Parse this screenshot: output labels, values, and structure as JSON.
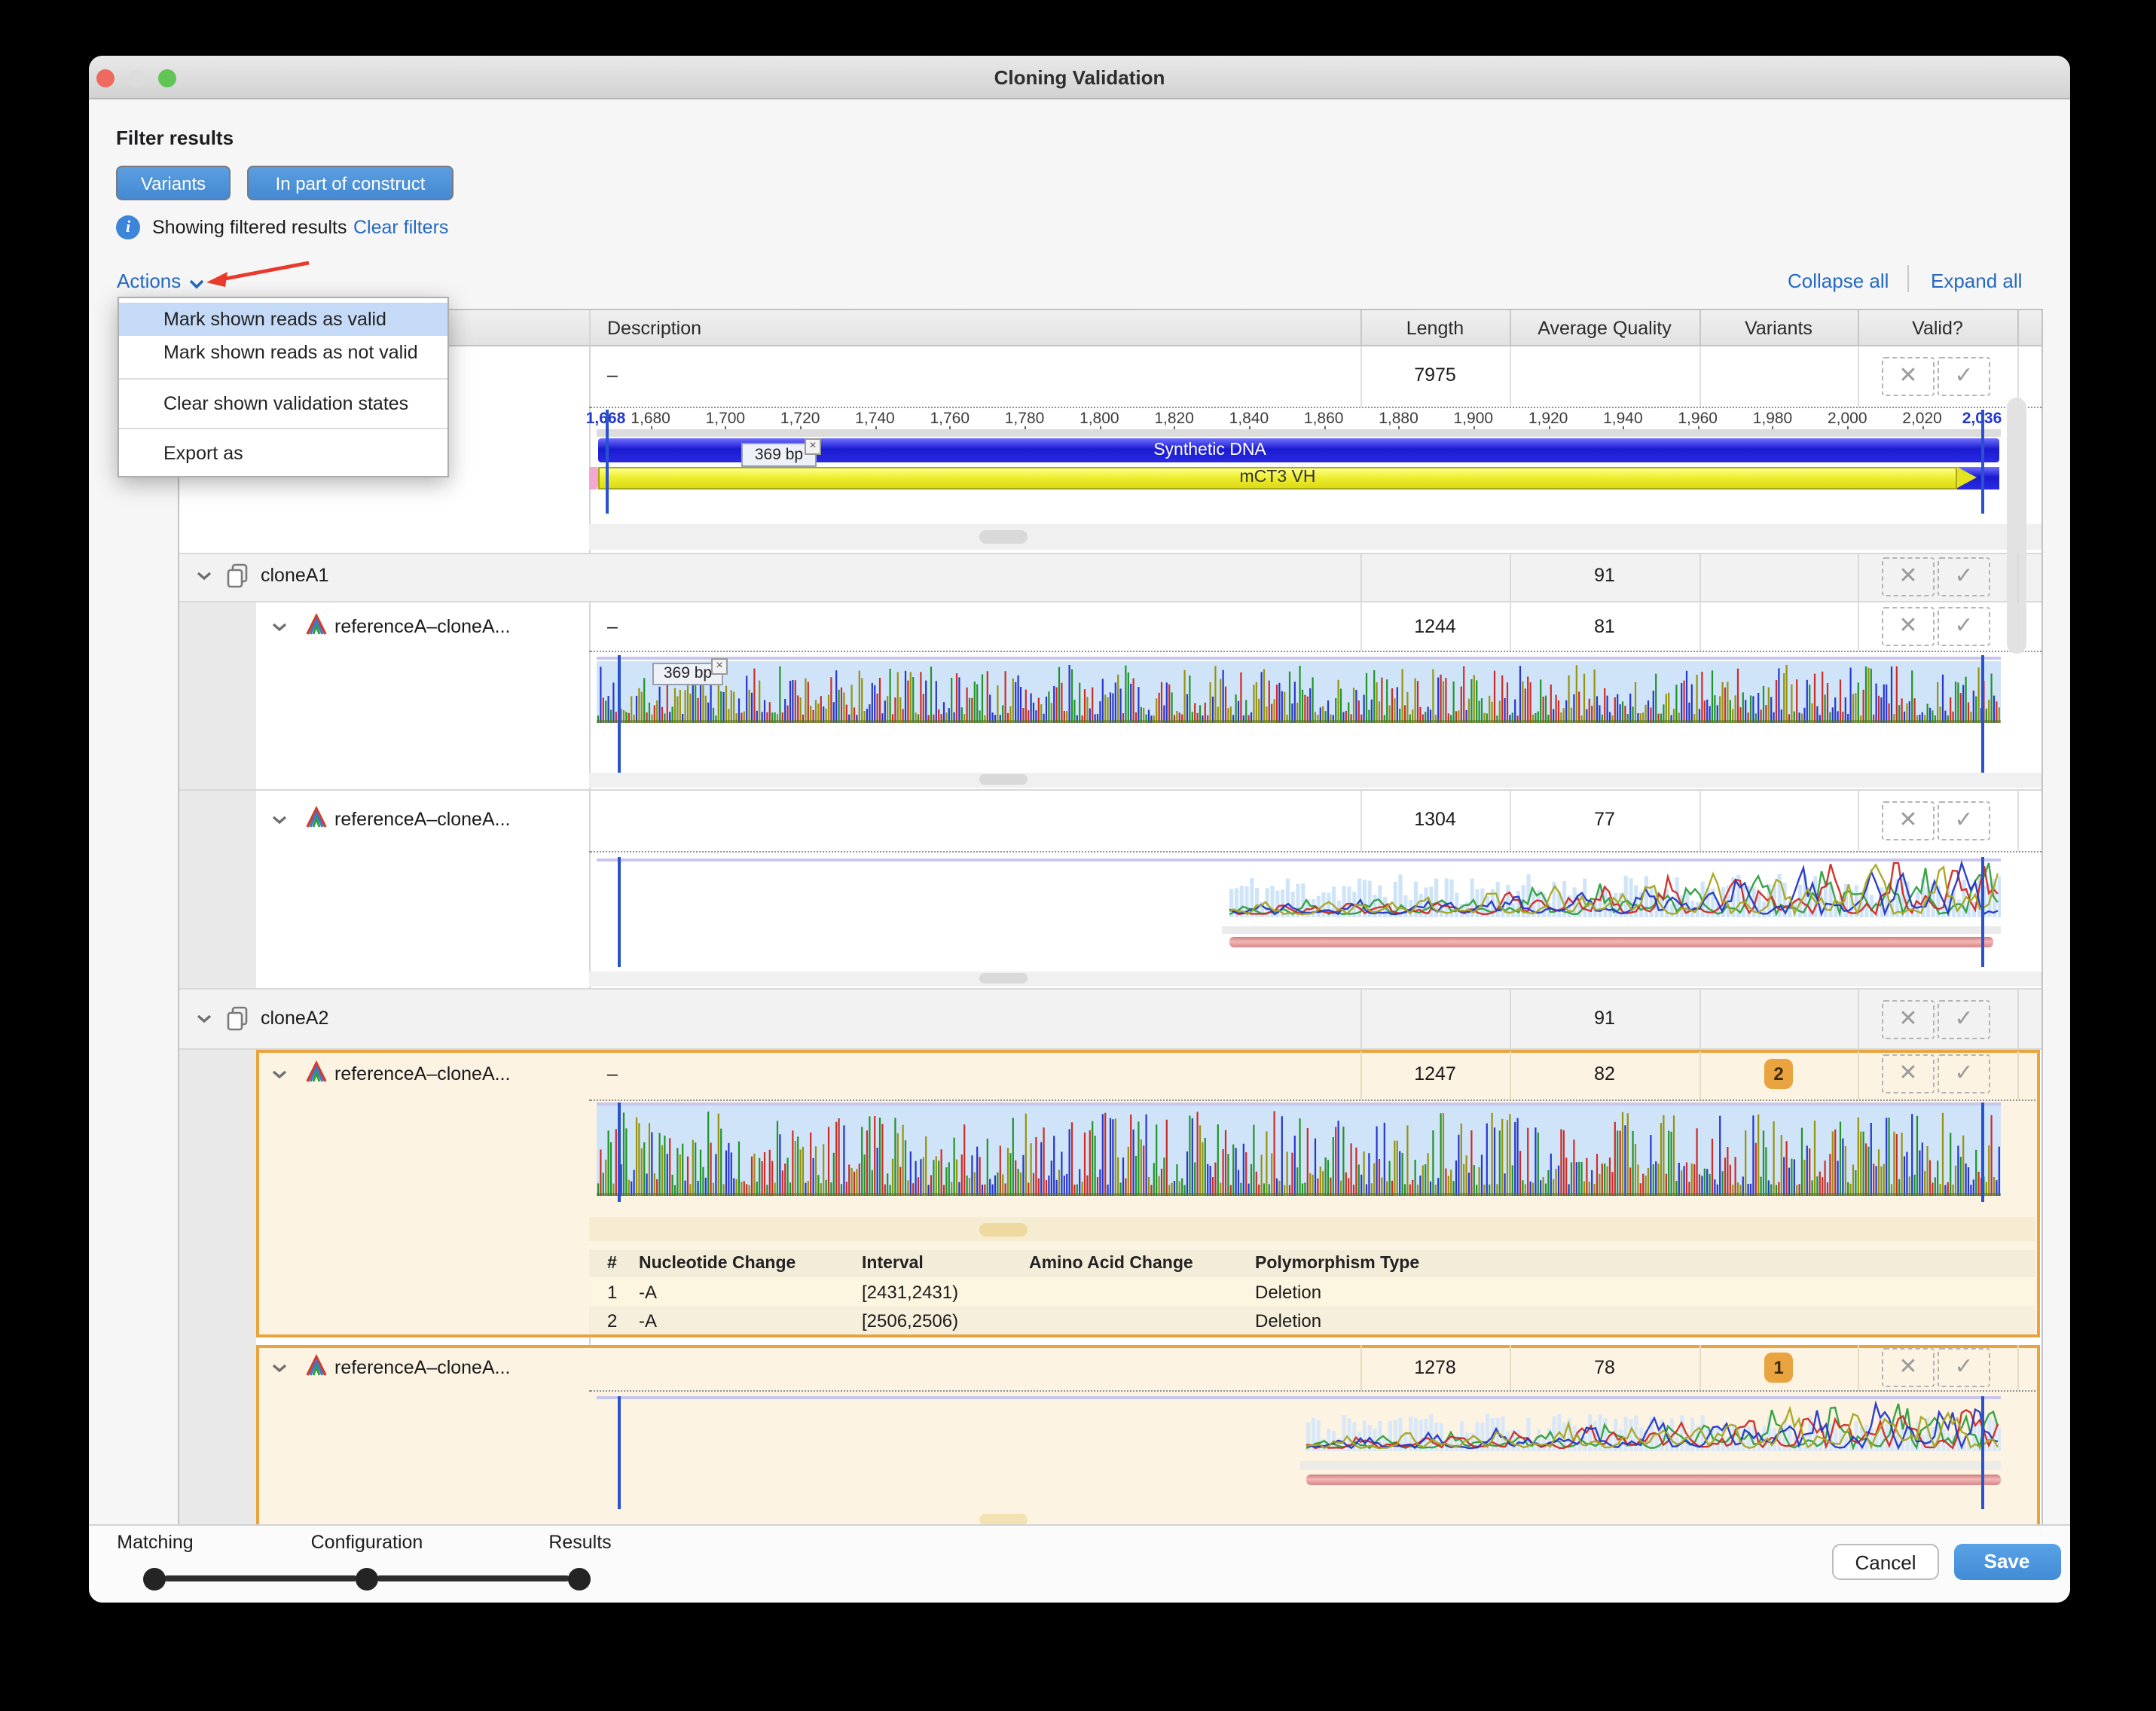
{
  "colors": {
    "accent": "#4a94d9",
    "link": "#2469c3",
    "selection_orange": "#e9a43f",
    "menu_selection": "#c4daf7",
    "badge_orange": "#e9a43f"
  },
  "window": {
    "title": "Cloning Validation"
  },
  "filters": {
    "heading": "Filter results",
    "variants_button": "Variants",
    "construct_button": "In part of construct",
    "status": "Showing filtered results",
    "clear_link": "Clear filters"
  },
  "toolbar": {
    "actions_label": "Actions",
    "collapse_all": "Collapse all",
    "expand_all": "Expand all"
  },
  "actions_menu": {
    "selected_index": 0,
    "items": [
      "Mark shown reads as valid",
      "Mark shown reads as not valid",
      "Clear shown validation states",
      "Export as"
    ]
  },
  "table": {
    "headers": {
      "description": "Description",
      "length": "Length",
      "avg_quality": "Average Quality",
      "variants": "Variants",
      "valid": "Valid?"
    }
  },
  "reference": {
    "description": "–",
    "length": "7975",
    "ruler_labels": [
      "1,668",
      "1,680",
      "1,700",
      "1,720",
      "1,740",
      "1,760",
      "1,780",
      "1,800",
      "1,820",
      "1,840",
      "1,860",
      "1,880",
      "1,900",
      "1,920",
      "1,940",
      "1,960",
      "1,980",
      "2,000",
      "2,020",
      "2,036"
    ],
    "ruler_start": 1668,
    "ruler_end": 2036,
    "annotations": {
      "synthetic_dna": "Synthetic DNA",
      "mct3_vh": "mCT3 VH",
      "fragment_tag": "369 bp"
    }
  },
  "groups": {
    "cloneA1": {
      "name": "cloneA1",
      "avg_quality": "91",
      "read1": {
        "name": "referenceA–cloneA...",
        "description": "–",
        "length": "1244",
        "avg_quality": "81",
        "fragment_tag": "369 bp"
      },
      "read2": {
        "name": "referenceA–cloneA...",
        "length": "1304",
        "avg_quality": "77"
      }
    },
    "cloneA2": {
      "name": "cloneA2",
      "avg_quality": "91",
      "read1": {
        "name": "referenceA–cloneA...",
        "description": "–",
        "length": "1247",
        "avg_quality": "82",
        "variant_count": "2"
      },
      "read2": {
        "name": "referenceA–cloneA...",
        "length": "1278",
        "avg_quality": "78",
        "variant_count": "1"
      }
    }
  },
  "variant_table": {
    "headers": {
      "num": "#",
      "nucleotide": "Nucleotide Change",
      "interval": "Interval",
      "amino": "Amino Acid Change",
      "polymorphism": "Polymorphism Type"
    },
    "rows": [
      {
        "num": "1",
        "nucleotide": "-A",
        "interval": "[2431,2431)",
        "amino": "",
        "polymorphism": "Deletion"
      },
      {
        "num": "2",
        "nucleotide": "-A",
        "interval": "[2506,2506)",
        "amino": "",
        "polymorphism": "Deletion"
      }
    ]
  },
  "footer": {
    "steps": [
      "Matching",
      "Configuration",
      "Results"
    ],
    "cancel": "Cancel",
    "save": "Save"
  }
}
